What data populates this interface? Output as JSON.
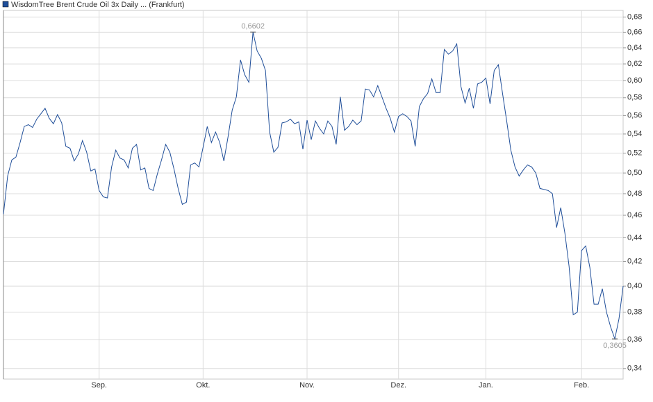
{
  "chart_data": {
    "type": "line",
    "series": [
      {
        "name": "WisdomTree Brent Crude Oil 3x Daily ... (Frankfurt)",
        "color": "#1f4e99",
        "values": [
          0.461,
          0.497,
          0.513,
          0.516,
          0.531,
          0.548,
          0.55,
          0.547,
          0.556,
          0.562,
          0.568,
          0.557,
          0.551,
          0.561,
          0.552,
          0.527,
          0.525,
          0.512,
          0.519,
          0.533,
          0.521,
          0.502,
          0.504,
          0.483,
          0.477,
          0.476,
          0.506,
          0.523,
          0.515,
          0.513,
          0.505,
          0.525,
          0.529,
          0.503,
          0.505,
          0.485,
          0.483,
          0.499,
          0.513,
          0.529,
          0.521,
          0.504,
          0.485,
          0.47,
          0.472,
          0.508,
          0.51,
          0.506,
          0.526,
          0.548,
          0.531,
          0.542,
          0.531,
          0.512,
          0.537,
          0.566,
          0.581,
          0.625,
          0.607,
          0.598,
          0.6602,
          0.636,
          0.627,
          0.612,
          0.542,
          0.521,
          0.526,
          0.552,
          0.553,
          0.556,
          0.551,
          0.553,
          0.524,
          0.555,
          0.534,
          0.554,
          0.546,
          0.54,
          0.554,
          0.548,
          0.529,
          0.581,
          0.544,
          0.548,
          0.555,
          0.55,
          0.554,
          0.59,
          0.589,
          0.581,
          0.594,
          0.581,
          0.568,
          0.557,
          0.542,
          0.559,
          0.562,
          0.559,
          0.554,
          0.527,
          0.57,
          0.579,
          0.585,
          0.602,
          0.586,
          0.586,
          0.638,
          0.632,
          0.636,
          0.645,
          0.593,
          0.574,
          0.591,
          0.568,
          0.596,
          0.598,
          0.603,
          0.573,
          0.612,
          0.619,
          0.585,
          0.554,
          0.523,
          0.506,
          0.497,
          0.503,
          0.508,
          0.506,
          0.5,
          0.485,
          0.484,
          0.483,
          0.48,
          0.449,
          0.467,
          0.444,
          0.416,
          0.378,
          0.38,
          0.429,
          0.433,
          0.415,
          0.386,
          0.386,
          0.398,
          0.38,
          0.369,
          0.3605,
          0.375,
          0.4
        ]
      }
    ],
    "categories": [
      null,
      null,
      null,
      null,
      null,
      null,
      null,
      null,
      null,
      null,
      null,
      null,
      null,
      null,
      null,
      null,
      null,
      null,
      null,
      null,
      null,
      null,
      null,
      "Sep.",
      null,
      null,
      null,
      null,
      null,
      null,
      null,
      null,
      null,
      null,
      null,
      null,
      null,
      null,
      null,
      null,
      null,
      null,
      null,
      null,
      null,
      null,
      null,
      null,
      "Okt.",
      null,
      null,
      null,
      null,
      null,
      null,
      null,
      null,
      null,
      null,
      null,
      null,
      null,
      null,
      null,
      null,
      null,
      null,
      null,
      null,
      null,
      null,
      null,
      null,
      "Nov.",
      null,
      null,
      null,
      null,
      null,
      null,
      null,
      null,
      null,
      null,
      null,
      null,
      null,
      null,
      null,
      null,
      null,
      null,
      null,
      null,
      null,
      "Dez.",
      null,
      null,
      null,
      null,
      null,
      null,
      null,
      null,
      null,
      null,
      null,
      null,
      null,
      null,
      null,
      null,
      null,
      null,
      null,
      null,
      "Jan.",
      null,
      null,
      null,
      null,
      null,
      null,
      null,
      null,
      null,
      null,
      null,
      null,
      null,
      null,
      null,
      null,
      null,
      null,
      null,
      null,
      null,
      null,
      "Feb.",
      null,
      null,
      null,
      null,
      null,
      null,
      null,
      null,
      null,
      null
    ],
    "annotations": [
      "0,6602",
      "0,3605"
    ],
    "log_scale": true,
    "ylim": [
      0.333,
      0.689
    ],
    "yticks": [
      {
        "value": 0.34,
        "label": "0,34"
      },
      {
        "value": 0.36,
        "label": "0,36"
      },
      {
        "value": 0.38,
        "label": "0,38"
      },
      {
        "value": 0.4,
        "label": "0,40"
      },
      {
        "value": 0.42,
        "label": "0,42"
      },
      {
        "value": 0.44,
        "label": "0,44"
      },
      {
        "value": 0.46,
        "label": "0,46"
      },
      {
        "value": 0.48,
        "label": "0,48"
      },
      {
        "value": 0.5,
        "label": "0,50"
      },
      {
        "value": 0.52,
        "label": "0,52"
      },
      {
        "value": 0.54,
        "label": "0,54"
      },
      {
        "value": 0.56,
        "label": "0,56"
      },
      {
        "value": 0.58,
        "label": "0,58"
      },
      {
        "value": 0.6,
        "label": "0,60"
      },
      {
        "value": 0.62,
        "label": "0,62"
      },
      {
        "value": 0.64,
        "label": "0,64"
      },
      {
        "value": 0.66,
        "label": "0,66"
      },
      {
        "value": 0.68,
        "label": "0,68"
      }
    ],
    "grid": true
  }
}
